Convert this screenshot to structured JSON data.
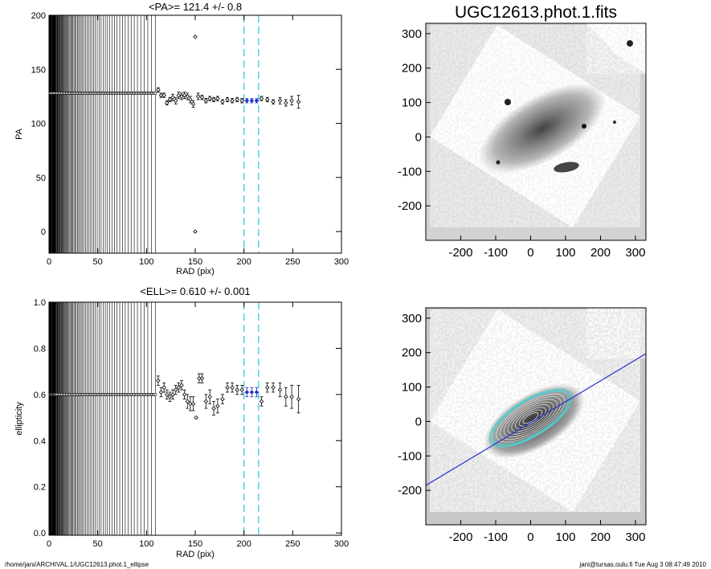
{
  "image_title": "UGC12613.phot.1.fits",
  "footer": {
    "left": "/home/jani/ARCHIVAL.1/UGC12613.phot.1_ellipse",
    "right": "jani@tursas.oulu.fi  Tue Aug  3 08:47:49 2010"
  },
  "colors": {
    "points": "#000000",
    "selected_points": "#2233cc",
    "vline": "#33ccdd",
    "major_axis_line": "#2233cc",
    "image_background": "#c8c8c8",
    "ellipse": "#55cccc"
  },
  "chart_data": [
    {
      "type": "scatter",
      "title": "<PA>= 121.4 +/-   0.8",
      "xlabel": "RAD (pix)",
      "ylabel": "PA",
      "xlim": [
        0,
        300
      ],
      "ylim": [
        -20,
        200
      ],
      "xticks": [
        0,
        50,
        100,
        150,
        200,
        250,
        300
      ],
      "yticks": [
        0,
        50,
        100,
        150,
        200
      ],
      "inner_const_value": 128,
      "inner_range": [
        0,
        110
      ],
      "vlines": [
        200,
        215
      ],
      "points": [
        {
          "x": 112,
          "y": 131,
          "err": 2
        },
        {
          "x": 115,
          "y": 126,
          "err": 2
        },
        {
          "x": 118,
          "y": 126,
          "err": 2
        },
        {
          "x": 121,
          "y": 119,
          "err": 2
        },
        {
          "x": 124,
          "y": 122,
          "err": 2
        },
        {
          "x": 127,
          "y": 124,
          "err": 3
        },
        {
          "x": 130,
          "y": 121,
          "err": 3
        },
        {
          "x": 133,
          "y": 126,
          "err": 3
        },
        {
          "x": 136,
          "y": 125,
          "err": 3
        },
        {
          "x": 139,
          "y": 126,
          "err": 3
        },
        {
          "x": 142,
          "y": 125,
          "err": 3
        },
        {
          "x": 145,
          "y": 122,
          "err": 3
        },
        {
          "x": 148,
          "y": 118,
          "err": 3
        },
        {
          "x": 150,
          "y": 180,
          "err": 0
        },
        {
          "x": 150,
          "y": 0,
          "err": 0
        },
        {
          "x": 153,
          "y": 125,
          "err": 3
        },
        {
          "x": 157,
          "y": 124,
          "err": 2
        },
        {
          "x": 161,
          "y": 121,
          "err": 2
        },
        {
          "x": 165,
          "y": 123,
          "err": 2
        },
        {
          "x": 169,
          "y": 122,
          "err": 2
        },
        {
          "x": 173,
          "y": 123,
          "err": 2
        },
        {
          "x": 178,
          "y": 120,
          "err": 2
        },
        {
          "x": 183,
          "y": 122,
          "err": 2
        },
        {
          "x": 188,
          "y": 121,
          "err": 2
        },
        {
          "x": 193,
          "y": 122,
          "err": 2
        },
        {
          "x": 198,
          "y": 121,
          "err": 2
        },
        {
          "x": 203,
          "y": 121,
          "err": 2,
          "sel": true
        },
        {
          "x": 208,
          "y": 121,
          "err": 2,
          "sel": true
        },
        {
          "x": 213,
          "y": 121,
          "err": 2,
          "sel": true
        },
        {
          "x": 218,
          "y": 123,
          "err": 2
        },
        {
          "x": 224,
          "y": 122,
          "err": 2
        },
        {
          "x": 230,
          "y": 120,
          "err": 2
        },
        {
          "x": 237,
          "y": 121,
          "err": 3
        },
        {
          "x": 243,
          "y": 119,
          "err": 3
        },
        {
          "x": 249,
          "y": 121,
          "err": 4
        },
        {
          "x": 256,
          "y": 120,
          "err": 6
        }
      ]
    },
    {
      "type": "scatter",
      "title": "<ELL>= 0.610 +/-  0.001",
      "xlabel": "RAD (pix)",
      "ylabel": "ellipticity",
      "xlim": [
        0,
        300
      ],
      "ylim": [
        -0.01,
        1.0
      ],
      "xticks": [
        0,
        50,
        100,
        150,
        200,
        250,
        300
      ],
      "yticks": [
        0.0,
        0.2,
        0.4,
        0.6,
        0.8,
        1.0
      ],
      "inner_const_value": 0.6,
      "inner_range": [
        0,
        110
      ],
      "vlines": [
        200,
        215
      ],
      "points": [
        {
          "x": 112,
          "y": 0.66,
          "err": 0.02
        },
        {
          "x": 115,
          "y": 0.61,
          "err": 0.02
        },
        {
          "x": 118,
          "y": 0.63,
          "err": 0.02
        },
        {
          "x": 121,
          "y": 0.6,
          "err": 0.02
        },
        {
          "x": 124,
          "y": 0.59,
          "err": 0.02
        },
        {
          "x": 127,
          "y": 0.6,
          "err": 0.02
        },
        {
          "x": 130,
          "y": 0.62,
          "err": 0.02
        },
        {
          "x": 133,
          "y": 0.63,
          "err": 0.02
        },
        {
          "x": 136,
          "y": 0.64,
          "err": 0.02
        },
        {
          "x": 139,
          "y": 0.6,
          "err": 0.02
        },
        {
          "x": 142,
          "y": 0.57,
          "err": 0.03
        },
        {
          "x": 145,
          "y": 0.56,
          "err": 0.03
        },
        {
          "x": 148,
          "y": 0.56,
          "err": 0.03
        },
        {
          "x": 151,
          "y": 0.5,
          "err": 0
        },
        {
          "x": 154,
          "y": 0.67,
          "err": 0.02
        },
        {
          "x": 157,
          "y": 0.67,
          "err": 0.02
        },
        {
          "x": 161,
          "y": 0.57,
          "err": 0.03
        },
        {
          "x": 165,
          "y": 0.59,
          "err": 0.03
        },
        {
          "x": 169,
          "y": 0.54,
          "err": 0.03
        },
        {
          "x": 173,
          "y": 0.55,
          "err": 0.03
        },
        {
          "x": 178,
          "y": 0.58,
          "err": 0.02
        },
        {
          "x": 183,
          "y": 0.63,
          "err": 0.02
        },
        {
          "x": 188,
          "y": 0.63,
          "err": 0.02
        },
        {
          "x": 193,
          "y": 0.62,
          "err": 0.02
        },
        {
          "x": 198,
          "y": 0.62,
          "err": 0.02
        },
        {
          "x": 203,
          "y": 0.61,
          "err": 0.02,
          "sel": true
        },
        {
          "x": 208,
          "y": 0.61,
          "err": 0.02,
          "sel": true
        },
        {
          "x": 213,
          "y": 0.61,
          "err": 0.02,
          "sel": true
        },
        {
          "x": 218,
          "y": 0.57,
          "err": 0.02
        },
        {
          "x": 224,
          "y": 0.63,
          "err": 0.02
        },
        {
          "x": 230,
          "y": 0.63,
          "err": 0.02
        },
        {
          "x": 237,
          "y": 0.62,
          "err": 0.03
        },
        {
          "x": 243,
          "y": 0.59,
          "err": 0.04
        },
        {
          "x": 249,
          "y": 0.59,
          "err": 0.05
        },
        {
          "x": 256,
          "y": 0.58,
          "err": 0.06
        }
      ]
    },
    {
      "type": "heatmap",
      "title": "UGC12613.phot.1.fits",
      "xlim": [
        -300,
        330
      ],
      "ylim": [
        -300,
        330
      ],
      "xticks": [
        -200,
        -100,
        0,
        100,
        200,
        300
      ],
      "yticks": [
        -200,
        -100,
        0,
        100,
        200,
        300
      ]
    },
    {
      "type": "heatmap",
      "title": "",
      "xlim": [
        -300,
        330
      ],
      "ylim": [
        -300,
        330
      ],
      "xticks": [
        -200,
        -100,
        0,
        100,
        200,
        300
      ],
      "yticks": [
        -200,
        -100,
        0,
        100,
        200,
        300
      ],
      "pa_deg": 121.4,
      "ellipse_major_axes": [
        40,
        60,
        80,
        100,
        120,
        140,
        160,
        180,
        200,
        215
      ],
      "ellipticity": 0.61
    }
  ]
}
